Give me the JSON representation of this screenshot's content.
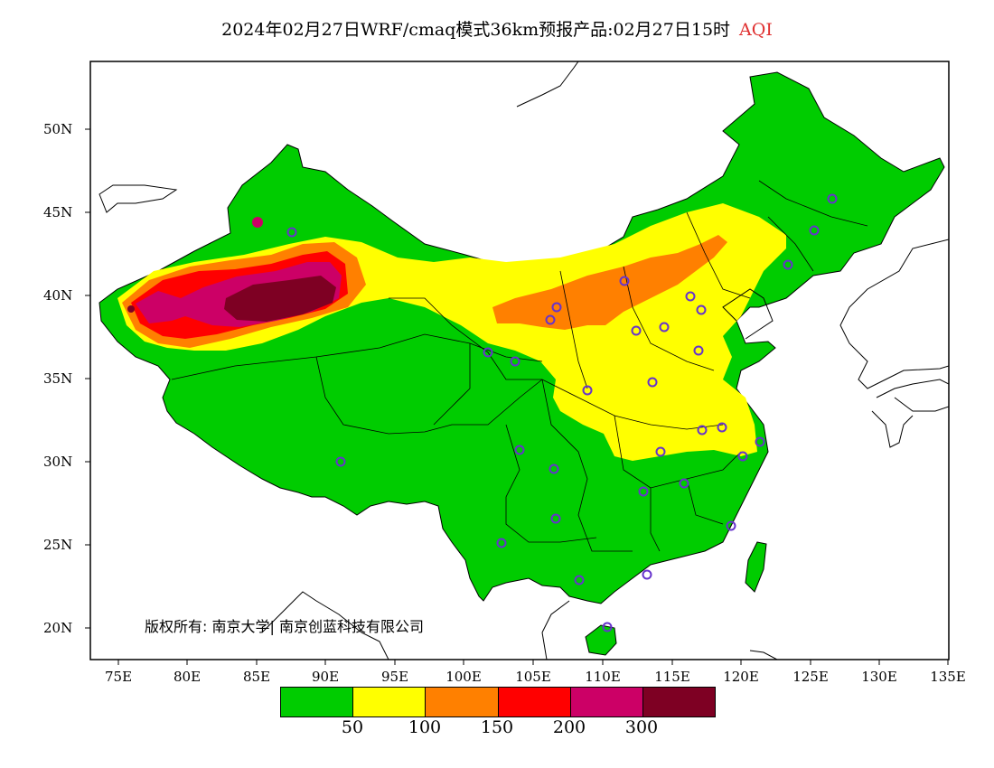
{
  "title": {
    "main": "2024年02月27日WRF/cmaq模式36km预报产品:02月27日15时",
    "variable": "AQI"
  },
  "axes": {
    "latitude_labels": [
      "50N",
      "45N",
      "40N",
      "35N",
      "30N",
      "25N",
      "20N"
    ],
    "longitude_labels": [
      "75E",
      "80E",
      "85E",
      "90E",
      "95E",
      "100E",
      "105E",
      "110E",
      "115E",
      "120E",
      "125E",
      "130E",
      "135E"
    ]
  },
  "map": {
    "lon_range": [
      73,
      135
    ],
    "lat_range": [
      18,
      54
    ]
  },
  "copyright": "版权所有: 南京大学| 南京创蓝科技有限公司",
  "legend": {
    "colors": [
      "#00cc00",
      "#ffff00",
      "#ff8000",
      "#ff0000",
      "#cc0066",
      "#7e0023"
    ],
    "labels": [
      "50",
      "100",
      "150",
      "200",
      "300"
    ]
  }
}
